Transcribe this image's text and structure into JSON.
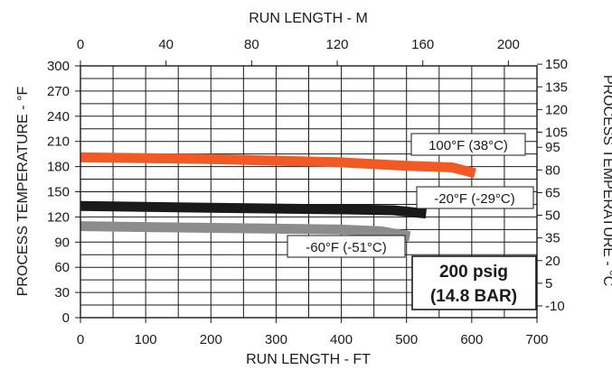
{
  "chart_data": {
    "type": "line",
    "top_axis_title": "RUN LENGTH - M",
    "top_ticks": [
      "0",
      "40",
      "80",
      "120",
      "160",
      "200"
    ],
    "xlabel": "RUN LENGTH - FT",
    "x_ticks": [
      "0",
      "100",
      "200",
      "300",
      "400",
      "500",
      "600",
      "700"
    ],
    "xlim": [
      0,
      700
    ],
    "ylabel": "PROCESS TEMPERATURE - °F",
    "y_ticks": [
      "0",
      "30",
      "60",
      "90",
      "120",
      "150",
      "180",
      "210",
      "240",
      "270",
      "300"
    ],
    "ylim": [
      0,
      300
    ],
    "right_axis_title": "PROCESS TEMPERATURE - °C",
    "right_ticks": [
      "150",
      "135",
      "120",
      "105",
      "95",
      "80",
      "65",
      "50",
      "35",
      "20",
      "5",
      "-10"
    ],
    "grid": true,
    "series": [
      {
        "name": "100°F (38°C)",
        "color": "#f15a24",
        "x": [
          0,
          100,
          200,
          300,
          400,
          500,
          570,
          605
        ],
        "y": [
          191,
          190,
          189,
          187,
          185,
          181,
          179,
          172
        ]
      },
      {
        "name": "-20°F (-29°C)",
        "color": "#1a1a1a",
        "x": [
          0,
          100,
          200,
          300,
          400,
          480,
          530
        ],
        "y": [
          133,
          132,
          131,
          130,
          129,
          128,
          124
        ]
      },
      {
        "name": "-60°F (-51°C)",
        "color": "#8c8c8c",
        "x": [
          0,
          100,
          200,
          300,
          400,
          460,
          505
        ],
        "y": [
          109,
          108,
          107,
          106,
          105,
          103,
          97
        ]
      }
    ],
    "annotation": [
      "200 psig",
      "(14.8 BAR)"
    ]
  }
}
